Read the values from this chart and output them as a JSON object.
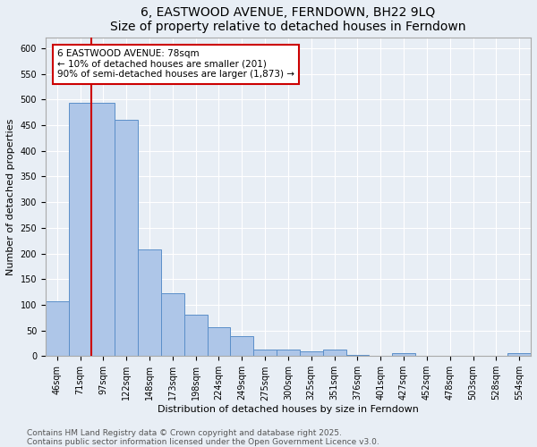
{
  "title": "6, EASTWOOD AVENUE, FERNDOWN, BH22 9LQ",
  "subtitle": "Size of property relative to detached houses in Ferndown",
  "xlabel": "Distribution of detached houses by size in Ferndown",
  "ylabel": "Number of detached properties",
  "categories": [
    "46sqm",
    "71sqm",
    "97sqm",
    "122sqm",
    "148sqm",
    "173sqm",
    "198sqm",
    "224sqm",
    "249sqm",
    "275sqm",
    "300sqm",
    "325sqm",
    "351sqm",
    "376sqm",
    "401sqm",
    "427sqm",
    "452sqm",
    "478sqm",
    "503sqm",
    "528sqm",
    "554sqm"
  ],
  "values": [
    107,
    493,
    493,
    460,
    207,
    122,
    80,
    57,
    38,
    13,
    13,
    9,
    12,
    3,
    0,
    6,
    0,
    0,
    0,
    0,
    5
  ],
  "bar_color": "#aec6e8",
  "bar_edge_color": "#5b8fc9",
  "bg_color": "#e8eef5",
  "grid_color": "#ffffff",
  "vline_color": "#cc0000",
  "vline_x": 1.5,
  "annotation_text": "6 EASTWOOD AVENUE: 78sqm\n← 10% of detached houses are smaller (201)\n90% of semi-detached houses are larger (1,873) →",
  "annotation_box_color": "#ffffff",
  "annotation_box_edge": "#cc0000",
  "ylim": [
    0,
    620
  ],
  "yticks": [
    0,
    50,
    100,
    150,
    200,
    250,
    300,
    350,
    400,
    450,
    500,
    550,
    600
  ],
  "footer_text": "Contains HM Land Registry data © Crown copyright and database right 2025.\nContains public sector information licensed under the Open Government Licence v3.0.",
  "title_fontsize": 10,
  "axis_label_fontsize": 8,
  "tick_fontsize": 7,
  "annotation_fontsize": 7.5,
  "footer_fontsize": 6.5
}
